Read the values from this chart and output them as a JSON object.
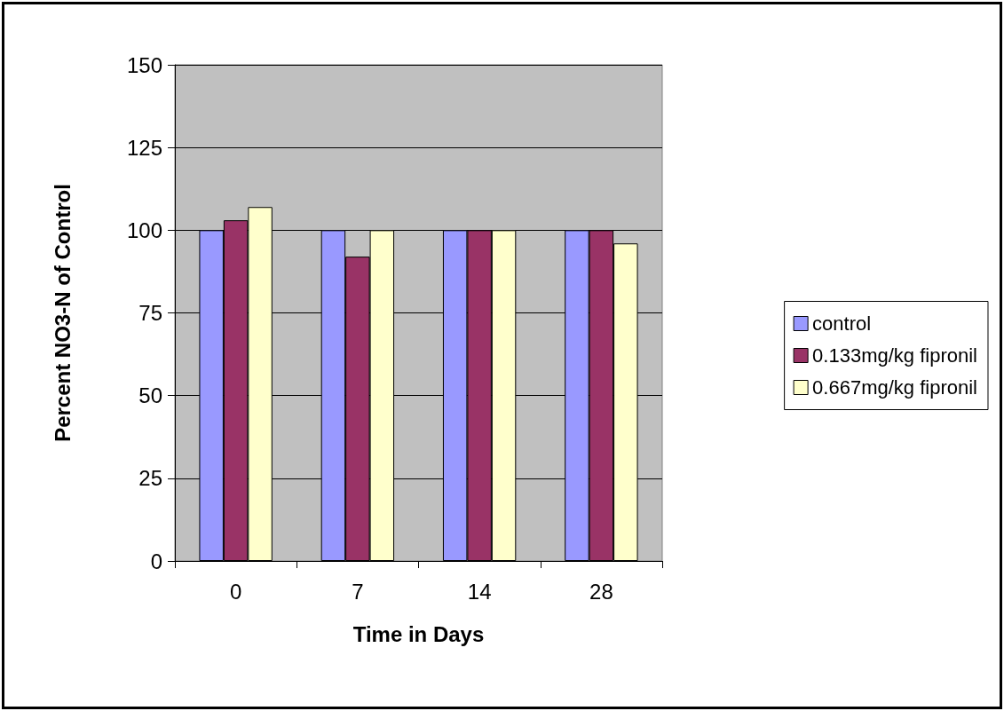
{
  "chart_data": {
    "type": "bar",
    "xlabel": "Time in Days",
    "ylabel": "Percent NO3-N of Control",
    "categories": [
      "0",
      "7",
      "14",
      "28"
    ],
    "series": [
      {
        "name": "control",
        "color": "#9999ff",
        "values": [
          100,
          100,
          100,
          100
        ]
      },
      {
        "name": "0.133mg/kg fipronil",
        "color": "#993366",
        "values": [
          103,
          92,
          100,
          100
        ]
      },
      {
        "name": "0.667mg/kg fipronil",
        "color": "#ffffcc",
        "values": [
          107,
          100,
          100,
          96
        ]
      }
    ],
    "ylim": [
      0,
      150
    ],
    "yticks": [
      0,
      25,
      50,
      75,
      100,
      125,
      150
    ],
    "grid": "y",
    "legend": "right"
  }
}
